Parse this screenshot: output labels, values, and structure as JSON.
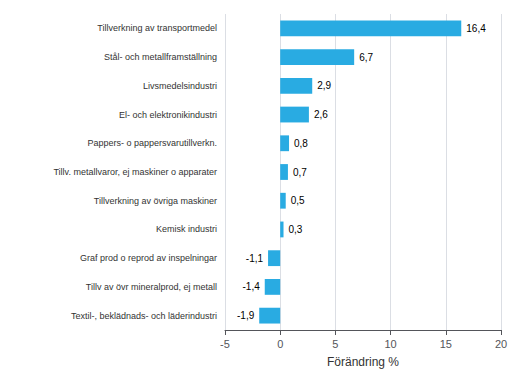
{
  "chart_data": {
    "type": "bar",
    "orientation": "horizontal",
    "categories": [
      "Textil-, beklädnads- och läderindustri",
      "Tillv av övr mineralprod, ej metall",
      "Graf prod o reprod av inspelningar",
      "Kemisk industri",
      "Tillverkning av övriga maskiner",
      "Tillv. metallvaror, ej maskiner o apparater",
      "Pappers- o pappersvarutillverkn.",
      "El- och elektronikindustri",
      "Livsmedelsindustri",
      "Stål- och metallframställning",
      "Tillverkning av transportmedel"
    ],
    "values": [
      -1.9,
      -1.4,
      -1.1,
      0.3,
      0.5,
      0.7,
      0.8,
      2.6,
      2.9,
      6.7,
      16.4
    ],
    "value_labels": [
      "-1,9",
      "-1,4",
      "-1,1",
      "0,3",
      "0,5",
      "0,7",
      "0,8",
      "2,6",
      "2,9",
      "6,7",
      "16,4"
    ],
    "data_labels": true,
    "color": "#29abe2",
    "xlabel": "Förändring %",
    "xlim": [
      -5,
      20
    ],
    "xticks": [
      -5,
      0,
      5,
      10,
      15,
      20
    ],
    "grid": true
  }
}
